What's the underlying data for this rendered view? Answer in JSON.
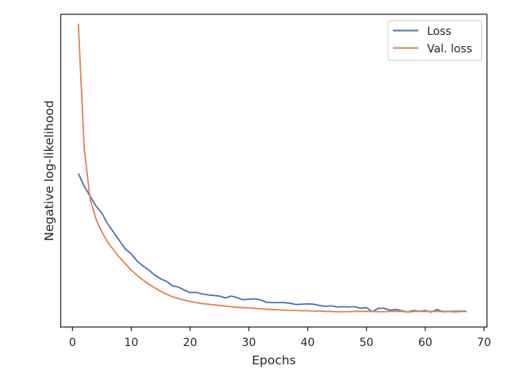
{
  "chart_data": {
    "type": "line",
    "title": "",
    "xlabel": "Epochs",
    "ylabel": "Negative log-likelihood",
    "xlim": [
      -2,
      70.5
    ],
    "ylim": [
      0,
      100
    ],
    "xticks": [
      0,
      10,
      20,
      30,
      40,
      50,
      60,
      70
    ],
    "yticks_visible": false,
    "grid": false,
    "legend": {
      "position": "top-right"
    },
    "series": [
      {
        "name": "Loss",
        "color": "#4c72b0",
        "x": [
          1,
          2,
          3,
          4,
          5,
          6,
          7,
          8,
          9,
          10,
          11,
          12,
          13,
          14,
          15,
          16,
          17,
          18,
          19,
          20,
          21,
          22,
          23,
          24,
          25,
          26,
          27,
          28,
          29,
          30,
          31,
          32,
          33,
          34,
          35,
          36,
          37,
          38,
          39,
          40,
          41,
          42,
          43,
          44,
          45,
          46,
          47,
          48,
          49,
          50,
          51,
          52,
          53,
          54,
          55,
          56,
          57,
          58,
          59,
          60,
          61,
          62,
          63,
          64,
          65,
          66,
          67
        ],
        "values": [
          49.1,
          45.0,
          41.8,
          38.7,
          36.4,
          32.9,
          30.3,
          27.6,
          24.9,
          23.4,
          21.1,
          19.5,
          18.2,
          16.6,
          15.4,
          14.6,
          13.2,
          12.8,
          11.8,
          11.0,
          11.1,
          10.6,
          10.3,
          10.1,
          9.9,
          9.3,
          9.9,
          9.4,
          8.7,
          8.9,
          9.0,
          8.7,
          7.9,
          7.8,
          7.8,
          7.8,
          7.6,
          7.2,
          7.3,
          7.4,
          7.3,
          6.9,
          6.6,
          6.8,
          6.4,
          6.5,
          6.4,
          6.5,
          6.0,
          6.2,
          4.9,
          6.0,
          6.0,
          5.4,
          5.6,
          5.2,
          4.8,
          5.3,
          5.0,
          5.3,
          4.8,
          5.6,
          4.9,
          5.0,
          4.9,
          5.0,
          5.0
        ]
      },
      {
        "name": "Val. loss",
        "color": "#dd8452",
        "x": [
          1,
          2,
          3,
          4,
          5,
          6,
          7,
          8,
          9,
          10,
          11,
          12,
          13,
          14,
          15,
          16,
          17,
          18,
          19,
          20,
          21,
          22,
          23,
          24,
          25,
          26,
          27,
          28,
          29,
          30,
          31,
          32,
          33,
          34,
          35,
          36,
          37,
          38,
          39,
          40,
          41,
          42,
          43,
          44,
          45,
          46,
          47,
          48,
          49,
          50,
          51,
          52,
          53,
          54,
          55,
          56,
          57,
          58,
          59,
          60,
          61,
          62,
          63,
          64,
          65,
          66,
          67
        ],
        "values": [
          97.0,
          57.0,
          41.0,
          34.5,
          30.4,
          27.1,
          24.6,
          22.3,
          20.2,
          18.2,
          16.5,
          15.0,
          13.7,
          12.5,
          11.4,
          10.5,
          9.7,
          9.1,
          8.6,
          8.2,
          7.8,
          7.5,
          7.3,
          7.1,
          6.9,
          6.7,
          6.5,
          6.3,
          6.2,
          6.1,
          6.0,
          5.8,
          5.7,
          5.6,
          5.5,
          5.4,
          5.3,
          5.3,
          5.2,
          5.2,
          5.1,
          5.1,
          5.0,
          5.0,
          4.9,
          4.9,
          4.9,
          5.0,
          5.0,
          5.0,
          5.0,
          4.9,
          4.9,
          5.0,
          5.0,
          5.0,
          4.8,
          5.0,
          5.0,
          5.0,
          5.0,
          5.0,
          5.0,
          5.0,
          5.1,
          5.1,
          5.1
        ]
      }
    ]
  }
}
